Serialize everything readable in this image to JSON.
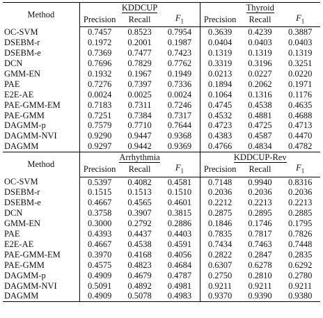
{
  "method_header": "Method",
  "metric_headers": [
    "Precision",
    "Recall",
    "F1"
  ],
  "top": {
    "datasets": [
      "KDDCUP",
      "Thyroid"
    ],
    "rows": [
      {
        "method": "OC-SVM",
        "vals": [
          "0.7457",
          "0.8523",
          "0.7954",
          "0.3639",
          "0.4239",
          "0.3887"
        ],
        "bold": []
      },
      {
        "method": "DSEBM-r",
        "vals": [
          "0.1972",
          "0.2001",
          "0.1987",
          "0.0404",
          "0.0403",
          "0.0403"
        ],
        "bold": []
      },
      {
        "method": "DSEBM-e",
        "vals": [
          "0.7369",
          "0.7477",
          "0.7423",
          "0.1319",
          "0.1319",
          "0.1319"
        ],
        "bold": []
      },
      {
        "method": "DCN",
        "vals": [
          "0.7696",
          "0.7829",
          "0.7762",
          "0.3319",
          "0.3196",
          "0.3251"
        ],
        "bold": []
      },
      {
        "method": "GMM-EN",
        "vals": [
          "0.1932",
          "0.1967",
          "0.1949",
          "0.0213",
          "0.0227",
          "0.0220"
        ],
        "bold": []
      },
      {
        "method": "PAE",
        "vals": [
          "0.7276",
          "0.7397",
          "0.7336",
          "0.1894",
          "0.2062",
          "0.1971"
        ],
        "bold": []
      },
      {
        "method": "E2E-AE",
        "vals": [
          "0.0024",
          "0.0025",
          "0.0024",
          "0.1064",
          "0.1316",
          "0.1176"
        ],
        "bold": []
      },
      {
        "method": "PAE-GMM-EM",
        "vals": [
          "0.7183",
          "0.7311",
          "0.7246",
          "0.4745",
          "0.4538",
          "0.4635"
        ],
        "bold": []
      },
      {
        "method": "PAE-GMM",
        "vals": [
          "0.7251",
          "0.7384",
          "0.7317",
          "0.4532",
          "0.4881",
          "0.4688"
        ],
        "bold": [
          4
        ]
      },
      {
        "method": "DAGMM-p",
        "vals": [
          "0.7579",
          "0.7710",
          "0.7644",
          "0.4723",
          "0.4725",
          "0.4713"
        ],
        "bold": []
      },
      {
        "method": "DAGMM-NVI",
        "vals": [
          "0.9290",
          "0.9447",
          "0.9368",
          "0.4383",
          "0.4587",
          "0.4470"
        ],
        "bold": [
          1
        ]
      },
      {
        "method": "DAGMM",
        "vals": [
          "0.9297",
          "0.9442",
          "0.9369",
          "0.4766",
          "0.4834",
          "0.4782"
        ],
        "bold": [
          0,
          2,
          3,
          5
        ]
      }
    ]
  },
  "bottom": {
    "datasets": [
      "Arrhythmia",
      "KDDCUP-Rev"
    ],
    "rows": [
      {
        "method": "OC-SVM",
        "vals": [
          "0.5397",
          "0.4082",
          "0.4581",
          "0.7148",
          "0.9940",
          "0.8316"
        ],
        "bold": [
          0,
          4
        ]
      },
      {
        "method": "DSEBM-r",
        "vals": [
          "0.1515",
          "0.1513",
          "0.1510",
          "0.2036",
          "0.2036",
          "0.2036"
        ],
        "bold": []
      },
      {
        "method": "DSEBM-e",
        "vals": [
          "0.4667",
          "0.4565",
          "0.4601",
          "0.2212",
          "0.2213",
          "0.2213"
        ],
        "bold": []
      },
      {
        "method": "DCN",
        "vals": [
          "0.3758",
          "0.3907",
          "0.3815",
          "0.2875",
          "0.2895",
          "0.2885"
        ],
        "bold": []
      },
      {
        "method": "GMM-EN",
        "vals": [
          "0.3000",
          "0.2792",
          "0.2886",
          "0.1846",
          "0.1746",
          "0.1795"
        ],
        "bold": []
      },
      {
        "method": "PAE",
        "vals": [
          "0.4393",
          "0.4437",
          "0.4403",
          "0.7835",
          "0.7817",
          "0.7826"
        ],
        "bold": []
      },
      {
        "method": "E2E-AE",
        "vals": [
          "0.4667",
          "0.4538",
          "0.4591",
          "0.7434",
          "0.7463",
          "0.7448"
        ],
        "bold": []
      },
      {
        "method": "PAE-GMM-EM",
        "vals": [
          "0.3970",
          "0.4168",
          "0.4056",
          "0.2822",
          "0.2847",
          "0.2835"
        ],
        "bold": []
      },
      {
        "method": "PAE-GMM",
        "vals": [
          "0.4575",
          "0.4823",
          "0.4684",
          "0.6307",
          "0.6278",
          "0.6292"
        ],
        "bold": []
      },
      {
        "method": "DAGMM-p",
        "vals": [
          "0.4909",
          "0.4679",
          "0.4787",
          "0.2750",
          "0.2810",
          "0.2780"
        ],
        "bold": []
      },
      {
        "method": "DAGMM-NVI",
        "vals": [
          "0.5091",
          "0.4892",
          "0.4981",
          "0.9211",
          "0.9211",
          "0.9211"
        ],
        "bold": []
      },
      {
        "method": "DAGMM",
        "vals": [
          "0.4909",
          "0.5078",
          "0.4983",
          "0.9370",
          "0.9390",
          "0.9380"
        ],
        "bold": [
          1,
          2,
          3,
          5
        ]
      }
    ]
  }
}
